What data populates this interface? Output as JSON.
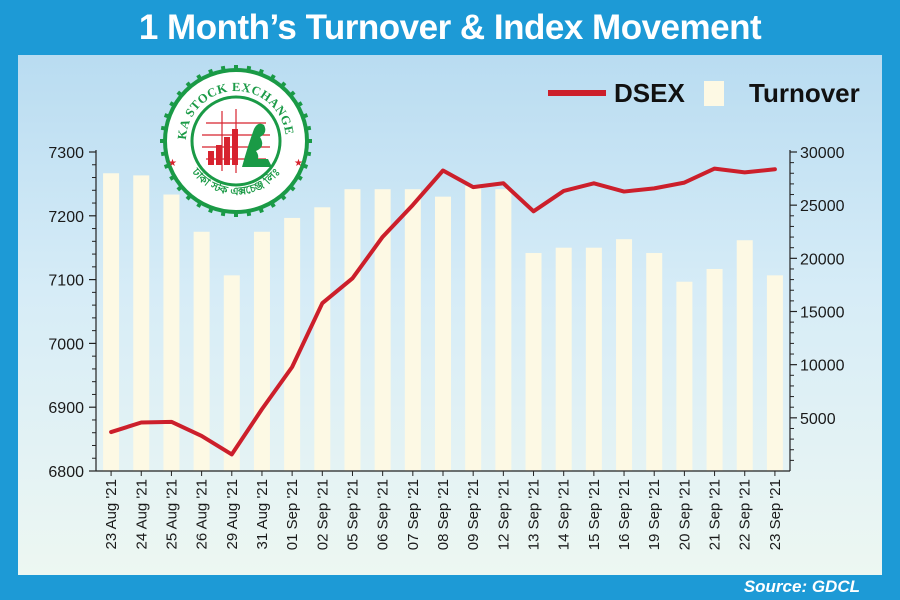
{
  "title": "1 Month’s Turnover & Index Movement",
  "source": "Source: GDCL",
  "logo": {
    "text_top": "DHAKA STOCK EXCHANGE LTD.",
    "text_bottom": "ঢাকা স্টক এক্সচেঞ্জ লিঃ"
  },
  "colors": {
    "frame": "#1d9ad6",
    "dsex_line": "#cc1f2b",
    "turnover_bar": "#fdf9e4",
    "logo_green": "#1a9a46",
    "logo_red": "#d7232f"
  },
  "chart_data": {
    "type": "bar+line",
    "categories": [
      "23 Aug '21",
      "24 Aug '21",
      "25 Aug '21",
      "26 Aug '21",
      "29 Aug '21",
      "31 Aug '21",
      "01 Sep '21",
      "02 Sep '21",
      "05 Sep '21",
      "06 Sep '21",
      "07 Sep '21",
      "08 Sep '21",
      "09 Sep '21",
      "12 Sep '21",
      "13 Sep '21",
      "14 Sep '21",
      "15 Sep '21",
      "16 Sep '21",
      "19 Sep '21",
      "20 Sep '21",
      "21 Sep '21",
      "22 Sep '21",
      "23 Sep '21"
    ],
    "series": [
      {
        "name": "Turnover",
        "type": "bar",
        "axis": "right",
        "values": [
          28000,
          27800,
          26000,
          22500,
          18400,
          22500,
          23800,
          24800,
          26500,
          26500,
          26500,
          25800,
          26800,
          26500,
          20500,
          21000,
          21000,
          21800,
          20500,
          17800,
          19000,
          21700,
          18400
        ]
      },
      {
        "name": "DSEX",
        "type": "line",
        "axis": "left",
        "values": [
          6861,
          6876,
          6877,
          6855,
          6826,
          6897,
          6963,
          7063,
          7102,
          7167,
          7217,
          7271,
          7245,
          7251,
          7207,
          7239,
          7251,
          7238,
          7243,
          7252,
          7274,
          7268,
          7273
        ]
      }
    ],
    "y_left": {
      "min": 6800,
      "max": 7300,
      "ticks": [
        6800,
        6900,
        7000,
        7100,
        7200,
        7300
      ]
    },
    "y_right": {
      "min": 0,
      "max": 30000,
      "ticks": [
        5000,
        10000,
        15000,
        20000,
        25000,
        30000
      ]
    },
    "legend": {
      "position": "top-right",
      "items": [
        "DSEX",
        "Turnover"
      ]
    },
    "grid": false
  }
}
